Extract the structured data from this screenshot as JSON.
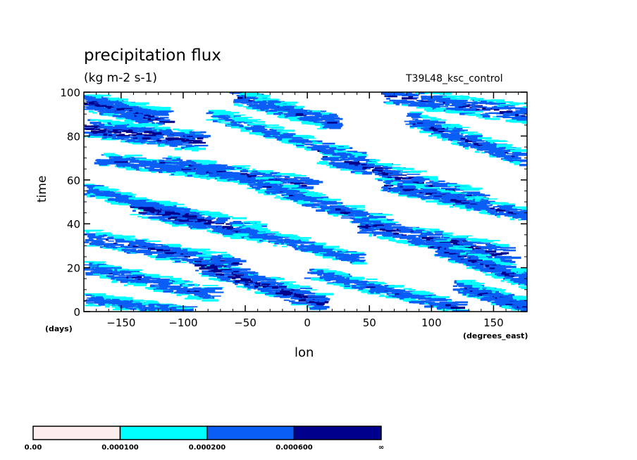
{
  "chart_data": {
    "type": "heatmap",
    "title": "precipitation flux",
    "units": "(kg m-2 s-1)",
    "run_label": "T39L48_ksc_control",
    "xlabel": "lon",
    "xunits": "(degrees_east)",
    "ylabel": "time",
    "yunits": "(days)",
    "xlim": [
      -180,
      177
    ],
    "ylim": [
      0,
      100
    ],
    "xticks": [
      -150,
      -100,
      -50,
      0,
      50,
      100,
      150
    ],
    "yticks": [
      0,
      20,
      40,
      60,
      80,
      100
    ],
    "levels": [
      "0.00",
      "0.000100",
      "0.000200",
      "0.000600",
      "∞"
    ],
    "level_values": [
      0.0,
      0.0001,
      0.0002,
      0.0006
    ],
    "colors": [
      "#fdeeee",
      "#00ffff",
      "#0b5ef5",
      "#00008c"
    ],
    "features": [
      {
        "lon0": -180,
        "t0": 96,
        "lon1": -120,
        "t1": 88,
        "width": 4,
        "intensity": 0.0007
      },
      {
        "lon0": -60,
        "t0": 98,
        "lon1": 20,
        "t1": 86,
        "width": 3.5,
        "intensity": 0.0005
      },
      {
        "lon0": 60,
        "t0": 99,
        "lon1": 177,
        "t1": 90,
        "width": 4,
        "intensity": 0.0006
      },
      {
        "lon0": -180,
        "t0": 84,
        "lon1": -90,
        "t1": 78,
        "width": 4,
        "intensity": 0.0008
      },
      {
        "lon0": -80,
        "t0": 90,
        "lon1": 40,
        "t1": 70,
        "width": 3,
        "intensity": 0.0004
      },
      {
        "lon0": 80,
        "t0": 88,
        "lon1": 170,
        "t1": 70,
        "width": 3.5,
        "intensity": 0.0006
      },
      {
        "lon0": -170,
        "t0": 70,
        "lon1": -60,
        "t1": 62,
        "width": 3,
        "intensity": 0.0005
      },
      {
        "lon0": -120,
        "t0": 68,
        "lon1": 0,
        "t1": 58,
        "width": 3.5,
        "intensity": 0.0006
      },
      {
        "lon0": 10,
        "t0": 72,
        "lon1": 140,
        "t1": 50,
        "width": 4,
        "intensity": 0.0007
      },
      {
        "lon0": -180,
        "t0": 56,
        "lon1": -100,
        "t1": 44,
        "width": 3,
        "intensity": 0.0004
      },
      {
        "lon0": -140,
        "t0": 48,
        "lon1": -40,
        "t1": 36,
        "width": 4,
        "intensity": 0.0008
      },
      {
        "lon0": -50,
        "t0": 60,
        "lon1": 60,
        "t1": 40,
        "width": 3.5,
        "intensity": 0.0005
      },
      {
        "lon0": 60,
        "t0": 58,
        "lon1": 177,
        "t1": 44,
        "width": 3,
        "intensity": 0.0006
      },
      {
        "lon0": -180,
        "t0": 34,
        "lon1": -60,
        "t1": 22,
        "width": 3.5,
        "intensity": 0.0006
      },
      {
        "lon0": -60,
        "t0": 38,
        "lon1": 40,
        "t1": 24,
        "width": 3,
        "intensity": 0.0004
      },
      {
        "lon0": 40,
        "t0": 40,
        "lon1": 160,
        "t1": 26,
        "width": 4,
        "intensity": 0.0007
      },
      {
        "lon0": -180,
        "t0": 20,
        "lon1": -80,
        "t1": 8,
        "width": 3.5,
        "intensity": 0.0005
      },
      {
        "lon0": -90,
        "t0": 22,
        "lon1": 10,
        "t1": 4,
        "width": 4,
        "intensity": 0.0008
      },
      {
        "lon0": 0,
        "t0": 18,
        "lon1": 120,
        "t1": 2,
        "width": 3,
        "intensity": 0.0005
      },
      {
        "lon0": 100,
        "t0": 30,
        "lon1": 177,
        "t1": 14,
        "width": 3.5,
        "intensity": 0.0006
      },
      {
        "lon0": -180,
        "t0": 6,
        "lon1": -100,
        "t1": 0,
        "width": 3,
        "intensity": 0.0004
      },
      {
        "lon0": 120,
        "t0": 12,
        "lon1": 177,
        "t1": 2,
        "width": 3,
        "intensity": 0.0006
      }
    ]
  }
}
